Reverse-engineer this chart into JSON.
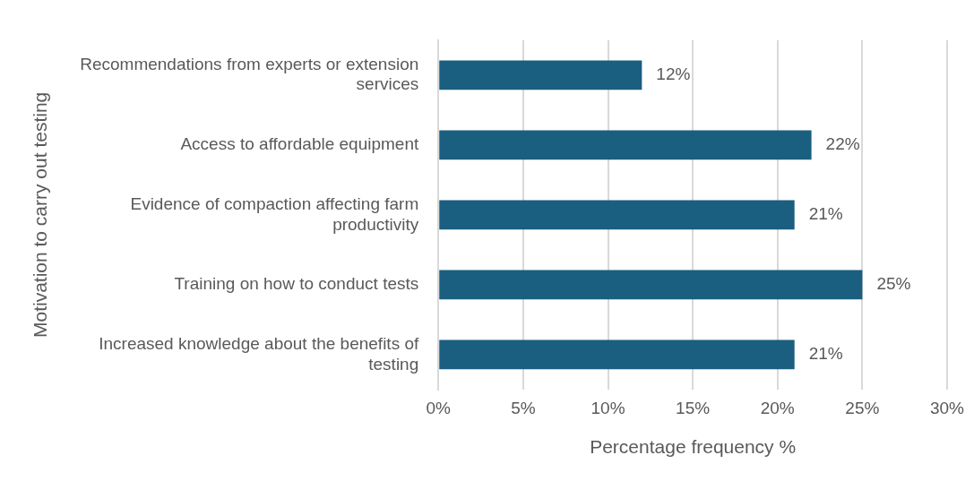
{
  "chart_data": {
    "type": "bar",
    "orientation": "horizontal",
    "xlabel": "Percentage frequency %",
    "ylabel": "Motivation to carry out testing",
    "categories": [
      "Recommendations from experts or extension services",
      "Access to affordable equipment",
      "Evidence of compaction affecting farm productivity",
      "Training on how to conduct tests",
      "Increased knowledge about the benefits of testing"
    ],
    "values": [
      12,
      22,
      21,
      25,
      21
    ],
    "value_labels": [
      "12%",
      "22%",
      "21%",
      "25%",
      "21%"
    ],
    "color": "#1a5e80",
    "xlim": [
      0,
      30
    ],
    "xticks": [
      {
        "value": 0,
        "label": "0%"
      },
      {
        "value": 5,
        "label": "5%"
      },
      {
        "value": 10,
        "label": "10%"
      },
      {
        "value": 15,
        "label": "15%"
      },
      {
        "value": 20,
        "label": "20%"
      },
      {
        "value": 25,
        "label": "25%"
      },
      {
        "value": 30,
        "label": "30%"
      }
    ],
    "grid": "x",
    "legend": false
  }
}
